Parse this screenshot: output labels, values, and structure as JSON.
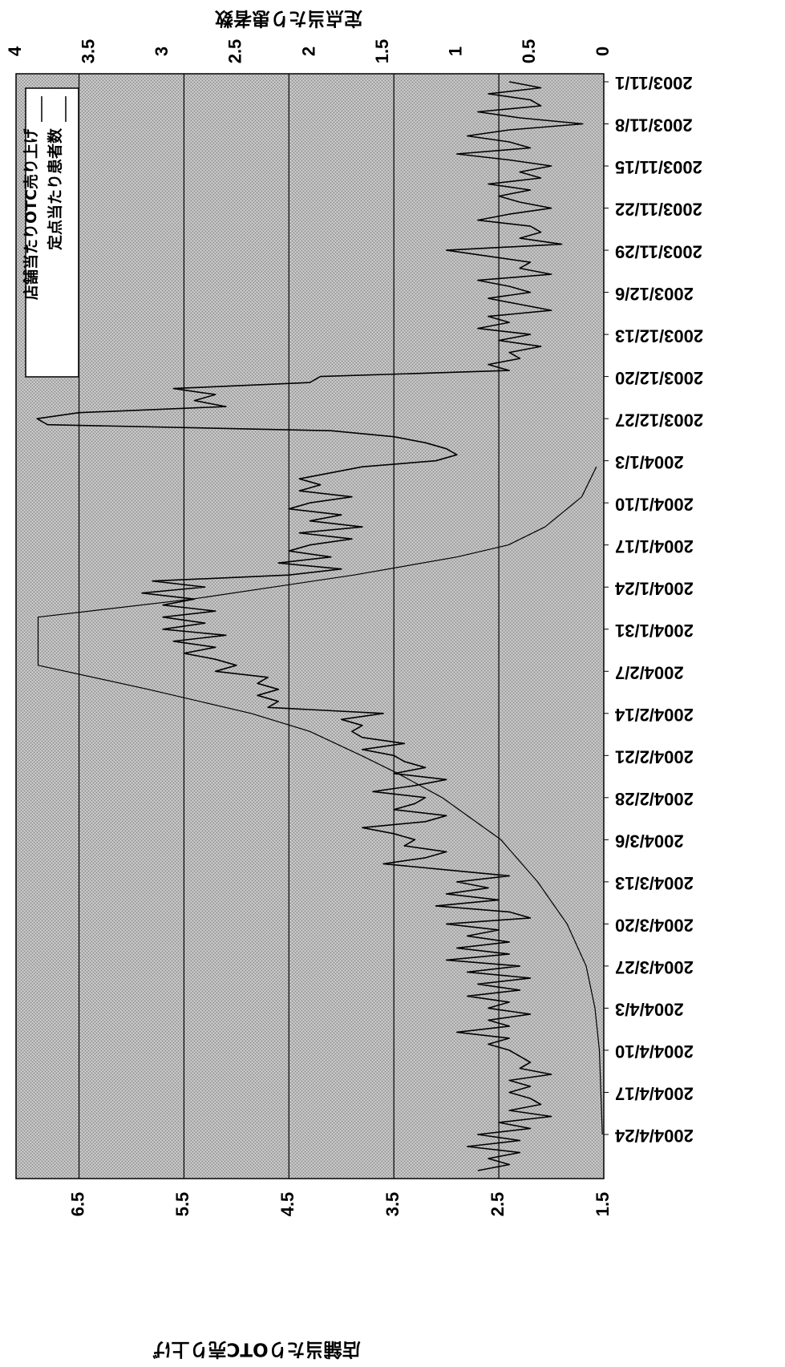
{
  "chart_data": {
    "type": "line",
    "orientation": "rotated 90° clockwise (time runs downward, values increase to the left)",
    "left_axis_title": "店舗当たりOTC売り上げ",
    "right_axis_title": "定点当たり患者数",
    "left_axis": {
      "ticks": [
        "1.5",
        "2.5",
        "3.5",
        "4.5",
        "5.5",
        "6.5"
      ],
      "ylim": [
        1.5,
        7.1
      ]
    },
    "right_axis": {
      "ticks": [
        "0",
        "0.5",
        "1",
        "1.5",
        "2",
        "2.5",
        "3",
        "3.5",
        "4"
      ],
      "ylim": [
        0,
        4
      ]
    },
    "x_start": "2003/11/1",
    "x_end": "2004/4/30",
    "x_tick_labels": [
      "2003/11/1",
      "2003/11/8",
      "2003/11/15",
      "2003/11/22",
      "2003/11/29",
      "2003/12/6",
      "2003/12/13",
      "2003/12/20",
      "2003/12/27",
      "2004/1/3",
      "2004/1/10",
      "2004/1/17",
      "2004/1/24",
      "2004/1/31",
      "2004/2/7",
      "2004/2/14",
      "2004/2/21",
      "2004/2/28",
      "2004/3/6",
      "2004/3/13",
      "2004/3/20",
      "2004/3/27",
      "2004/4/3",
      "2004/4/10",
      "2004/4/17",
      "2004/4/24"
    ],
    "grid": true,
    "legend_position": "top-left",
    "series": [
      {
        "name": "店舗当たりOTC売り上げ",
        "axis": "left",
        "color": "#000000",
        "points": [
          [
            "2003/11/1",
            2.4
          ],
          [
            "2003/11/2",
            2.1
          ],
          [
            "2003/11/3",
            2.6
          ],
          [
            "2003/11/4",
            2.2
          ],
          [
            "2003/11/5",
            2.1
          ],
          [
            "2003/11/6",
            2.7
          ],
          [
            "2003/11/7",
            2.3
          ],
          [
            "2003/11/8",
            1.7
          ],
          [
            "2003/11/9",
            2.4
          ],
          [
            "2003/11/10",
            2.8
          ],
          [
            "2003/11/11",
            2.4
          ],
          [
            "2003/11/12",
            2.2
          ],
          [
            "2003/11/13",
            2.9
          ],
          [
            "2003/11/14",
            2.4
          ],
          [
            "2003/11/15",
            2.0
          ],
          [
            "2003/11/16",
            2.3
          ],
          [
            "2003/11/17",
            2.1
          ],
          [
            "2003/11/18",
            2.6
          ],
          [
            "2003/11/19",
            2.2
          ],
          [
            "2003/11/20",
            2.5
          ],
          [
            "2003/11/21",
            2.3
          ],
          [
            "2003/11/22",
            2.0
          ],
          [
            "2003/11/23",
            2.4
          ],
          [
            "2003/11/24",
            2.7
          ],
          [
            "2003/11/25",
            2.2
          ],
          [
            "2003/11/26",
            2.1
          ],
          [
            "2003/11/27",
            2.3
          ],
          [
            "2003/11/28",
            1.9
          ],
          [
            "2003/11/29",
            3.0
          ],
          [
            "2003/11/30",
            2.6
          ],
          [
            "2003/12/1",
            2.2
          ],
          [
            "2003/12/2",
            2.3
          ],
          [
            "2003/12/3",
            2.0
          ],
          [
            "2003/12/4",
            2.7
          ],
          [
            "2003/12/5",
            2.4
          ],
          [
            "2003/12/6",
            2.2
          ],
          [
            "2003/12/7",
            2.6
          ],
          [
            "2003/12/8",
            2.3
          ],
          [
            "2003/12/9",
            2.0
          ],
          [
            "2003/12/10",
            2.6
          ],
          [
            "2003/12/11",
            2.4
          ],
          [
            "2003/12/12",
            2.7
          ],
          [
            "2003/12/13",
            2.2
          ],
          [
            "2003/12/14",
            2.5
          ],
          [
            "2003/12/15",
            2.1
          ],
          [
            "2003/12/16",
            2.4
          ],
          [
            "2003/12/17",
            2.3
          ],
          [
            "2003/12/18",
            2.6
          ],
          [
            "2003/12/19",
            2.4
          ],
          [
            "2003/12/20",
            4.2
          ],
          [
            "2003/12/21",
            4.3
          ],
          [
            "2003/12/22",
            5.6
          ],
          [
            "2003/12/23",
            5.2
          ],
          [
            "2003/12/24",
            5.4
          ],
          [
            "2003/12/25",
            5.1
          ],
          [
            "2003/12/26",
            6.5
          ],
          [
            "2003/12/27",
            6.9
          ],
          [
            "2003/12/28",
            6.8
          ],
          [
            "2003/12/29",
            4.1
          ],
          [
            "2003/12/30",
            3.5
          ],
          [
            "2003/12/31",
            3.2
          ],
          [
            "2004/1/1",
            3.0
          ],
          [
            "2004/1/2",
            2.9
          ],
          [
            "2004/1/3",
            3.1
          ],
          [
            "2004/1/4",
            3.8
          ],
          [
            "2004/1/5",
            4.1
          ],
          [
            "2004/1/6",
            4.4
          ],
          [
            "2004/1/7",
            4.2
          ],
          [
            "2004/1/8",
            4.4
          ],
          [
            "2004/1/9",
            3.9
          ],
          [
            "2004/1/10",
            4.3
          ],
          [
            "2004/1/11",
            4.5
          ],
          [
            "2004/1/12",
            4.0
          ],
          [
            "2004/1/13",
            4.3
          ],
          [
            "2004/1/14",
            3.8
          ],
          [
            "2004/1/15",
            4.4
          ],
          [
            "2004/1/16",
            3.9
          ],
          [
            "2004/1/17",
            4.3
          ],
          [
            "2004/1/18",
            4.5
          ],
          [
            "2004/1/19",
            4.1
          ],
          [
            "2004/1/20",
            4.6
          ],
          [
            "2004/1/21",
            4.0
          ],
          [
            "2004/1/22",
            4.5
          ],
          [
            "2004/1/23",
            5.8
          ],
          [
            "2004/1/24",
            5.3
          ],
          [
            "2004/1/25",
            5.9
          ],
          [
            "2004/1/26",
            5.4
          ],
          [
            "2004/1/27",
            5.7
          ],
          [
            "2004/1/28",
            5.2
          ],
          [
            "2004/1/29",
            5.7
          ],
          [
            "2004/1/30",
            5.3
          ],
          [
            "2004/1/31",
            5.7
          ],
          [
            "2004/2/1",
            5.1
          ],
          [
            "2004/2/2",
            5.6
          ],
          [
            "2004/2/3",
            5.2
          ],
          [
            "2004/2/4",
            5.5
          ],
          [
            "2004/2/5",
            5.2
          ],
          [
            "2004/2/6",
            5.0
          ],
          [
            "2004/2/7",
            5.2
          ],
          [
            "2004/2/8",
            4.7
          ],
          [
            "2004/2/9",
            4.8
          ],
          [
            "2004/2/10",
            4.6
          ],
          [
            "2004/2/11",
            4.8
          ],
          [
            "2004/2/12",
            4.6
          ],
          [
            "2004/2/13",
            4.7
          ],
          [
            "2004/2/14",
            3.6
          ],
          [
            "2004/2/15",
            4.0
          ],
          [
            "2004/2/16",
            3.8
          ],
          [
            "2004/2/17",
            3.9
          ],
          [
            "2004/2/18",
            3.8
          ],
          [
            "2004/2/19",
            3.4
          ],
          [
            "2004/2/20",
            3.8
          ],
          [
            "2004/2/21",
            3.5
          ],
          [
            "2004/2/22",
            3.4
          ],
          [
            "2004/2/23",
            3.2
          ],
          [
            "2004/2/24",
            3.5
          ],
          [
            "2004/2/25",
            3.0
          ],
          [
            "2004/2/26",
            3.3
          ],
          [
            "2004/2/27",
            3.7
          ],
          [
            "2004/2/28",
            3.2
          ],
          [
            "2004/2/29",
            3.3
          ],
          [
            "2004/3/1",
            3.5
          ],
          [
            "2004/3/2",
            3.0
          ],
          [
            "2004/3/3",
            3.2
          ],
          [
            "2004/3/4",
            3.8
          ],
          [
            "2004/3/5",
            3.5
          ],
          [
            "2004/3/6",
            3.3
          ],
          [
            "2004/3/7",
            3.4
          ],
          [
            "2004/3/8",
            3.0
          ],
          [
            "2004/3/9",
            3.2
          ],
          [
            "2004/3/10",
            3.6
          ],
          [
            "2004/3/11",
            3.0
          ],
          [
            "2004/3/12",
            2.4
          ],
          [
            "2004/3/13",
            2.9
          ],
          [
            "2004/3/14",
            2.6
          ],
          [
            "2004/3/15",
            3.0
          ],
          [
            "2004/3/16",
            2.5
          ],
          [
            "2004/3/17",
            3.1
          ],
          [
            "2004/3/18",
            2.4
          ],
          [
            "2004/3/19",
            2.2
          ],
          [
            "2004/3/20",
            3.0
          ],
          [
            "2004/3/21",
            2.5
          ],
          [
            "2004/3/22",
            2.8
          ],
          [
            "2004/3/23",
            2.4
          ],
          [
            "2004/3/24",
            2.9
          ],
          [
            "2004/3/25",
            2.4
          ],
          [
            "2004/3/26",
            3.0
          ],
          [
            "2004/3/27",
            2.3
          ],
          [
            "2004/3/28",
            2.8
          ],
          [
            "2004/3/29",
            2.2
          ],
          [
            "2004/3/30",
            2.7
          ],
          [
            "2004/3/31",
            2.3
          ],
          [
            "2004/4/1",
            2.8
          ],
          [
            "2004/4/2",
            2.4
          ],
          [
            "2004/4/3",
            2.6
          ],
          [
            "2004/4/4",
            2.2
          ],
          [
            "2004/4/5",
            2.6
          ],
          [
            "2004/4/6",
            2.4
          ],
          [
            "2004/4/7",
            2.9
          ],
          [
            "2004/4/8",
            2.4
          ],
          [
            "2004/4/9",
            2.6
          ],
          [
            "2004/4/10",
            2.4
          ],
          [
            "2004/4/11",
            2.3
          ],
          [
            "2004/4/12",
            2.2
          ],
          [
            "2004/4/13",
            2.3
          ],
          [
            "2004/4/14",
            2.0
          ],
          [
            "2004/4/15",
            2.4
          ],
          [
            "2004/4/16",
            2.2
          ],
          [
            "2004/4/17",
            2.4
          ],
          [
            "2004/4/18",
            2.2
          ],
          [
            "2004/4/19",
            2.1
          ],
          [
            "2004/4/20",
            2.4
          ],
          [
            "2004/4/21",
            2.0
          ],
          [
            "2004/4/22",
            2.5
          ],
          [
            "2004/4/23",
            2.2
          ],
          [
            "2004/4/24",
            2.7
          ],
          [
            "2004/4/25",
            2.3
          ],
          [
            "2004/4/26",
            2.8
          ],
          [
            "2004/4/27",
            2.3
          ],
          [
            "2004/4/28",
            2.6
          ],
          [
            "2004/4/29",
            2.4
          ],
          [
            "2004/4/30",
            2.7
          ]
        ]
      },
      {
        "name": "定点当たり患者数",
        "axis": "right",
        "color": "#000000",
        "points": [
          [
            "2004/1/4",
            0.05
          ],
          [
            "2004/1/9",
            0.15
          ],
          [
            "2004/1/14",
            0.4
          ],
          [
            "2004/1/17",
            0.65
          ],
          [
            "2004/1/19",
            1.0
          ],
          [
            "2004/1/22",
            1.7
          ],
          [
            "2004/1/26",
            2.8
          ],
          [
            "2004/1/29",
            3.85
          ],
          [
            "2004/2/6",
            3.85
          ],
          [
            "2004/2/10",
            3.1
          ],
          [
            "2004/2/14",
            2.4
          ],
          [
            "2004/2/17",
            2.0
          ],
          [
            "2004/2/21",
            1.65
          ],
          [
            "2004/2/24",
            1.4
          ],
          [
            "2004/2/28",
            1.1
          ],
          [
            "2004/3/6",
            0.7
          ],
          [
            "2004/3/13",
            0.45
          ],
          [
            "2004/3/20",
            0.25
          ],
          [
            "2004/3/27",
            0.12
          ],
          [
            "2004/4/3",
            0.06
          ],
          [
            "2004/4/10",
            0.03
          ],
          [
            "2004/4/24",
            0.01
          ]
        ]
      }
    ]
  }
}
